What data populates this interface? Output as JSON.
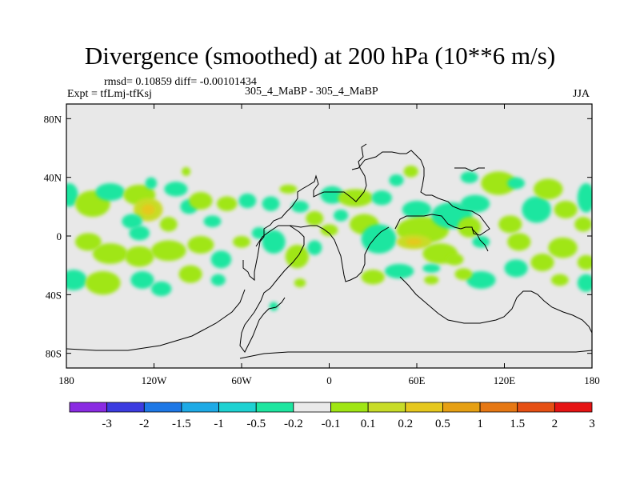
{
  "chart_data": {
    "type": "heatmap",
    "title": "Divergence (smoothed) at 200 hPa (10**6 m/s)",
    "stats": "rmsd= 0.10859 diff= -0.00101434",
    "left_label": "Expt = tfLmj-tfKsj",
    "center_label": "305_4_MaBP - 305_4_MaBP",
    "right_label": "JJA",
    "xlim": [
      -180,
      180
    ],
    "ylim": [
      -90,
      90
    ],
    "x_ticks": [
      {
        "value": -180,
        "label": "180"
      },
      {
        "value": -120,
        "label": "120W"
      },
      {
        "value": -60,
        "label": "60W"
      },
      {
        "value": 0,
        "label": "0"
      },
      {
        "value": 60,
        "label": "60E"
      },
      {
        "value": 120,
        "label": "120E"
      },
      {
        "value": 180,
        "label": "180"
      }
    ],
    "y_ticks": [
      {
        "value": 80,
        "label": "80N"
      },
      {
        "value": 40,
        "label": "40N"
      },
      {
        "value": 0,
        "label": "0"
      },
      {
        "value": -40,
        "label": "40S"
      },
      {
        "value": -80,
        "label": "80S"
      }
    ],
    "colorbar": {
      "colors": [
        "#8a2be2",
        "#3c3ce0",
        "#1e78e6",
        "#1eaae6",
        "#1ed2d2",
        "#1ee6a0",
        "#eaeaea",
        "#a0e614",
        "#c8dc28",
        "#e6c81e",
        "#e6a014",
        "#e67814",
        "#e65014",
        "#e61414"
      ],
      "labels": [
        "-3",
        "-2",
        "-1.5",
        "-1",
        "-0.5",
        "-0.2",
        "-0.1",
        "0.1",
        "0.2",
        "0.5",
        "1",
        "1.5",
        "2",
        "3"
      ]
    },
    "blobs": [
      {
        "lon": -178,
        "lat": 28,
        "rx": 6,
        "ry": 8,
        "v": -0.3
      },
      {
        "lon": -162,
        "lat": 22,
        "rx": 12,
        "ry": 9,
        "v": 0.3
      },
      {
        "lon": -150,
        "lat": 30,
        "rx": 10,
        "ry": 6,
        "v": -0.3
      },
      {
        "lon": -130,
        "lat": 28,
        "rx": 11,
        "ry": 7,
        "v": 0.3
      },
      {
        "lon": -124,
        "lat": 18,
        "rx": 10,
        "ry": 8,
        "v": 0.6
      },
      {
        "lon": -135,
        "lat": 10,
        "rx": 7,
        "ry": 5,
        "v": -0.3
      },
      {
        "lon": -122,
        "lat": 36,
        "rx": 4,
        "ry": 4,
        "v": -0.3
      },
      {
        "lon": -110,
        "lat": 8,
        "rx": 6,
        "ry": 5,
        "v": 0.3
      },
      {
        "lon": -96,
        "lat": 20,
        "rx": 6,
        "ry": 5,
        "v": -0.3
      },
      {
        "lon": -88,
        "lat": 24,
        "rx": 8,
        "ry": 6,
        "v": 0.3
      },
      {
        "lon": -70,
        "lat": 22,
        "rx": 7,
        "ry": 5,
        "v": 0.3
      },
      {
        "lon": -80,
        "lat": 10,
        "rx": 6,
        "ry": 4,
        "v": -0.3
      },
      {
        "lon": -105,
        "lat": 32,
        "rx": 8,
        "ry": 5,
        "v": -0.3
      },
      {
        "lon": -56,
        "lat": 24,
        "rx": 6,
        "ry": 5,
        "v": -0.3
      },
      {
        "lon": -98,
        "lat": 44,
        "rx": 3,
        "ry": 3,
        "v": 0.3
      },
      {
        "lon": -165,
        "lat": -4,
        "rx": 9,
        "ry": 6,
        "v": 0.3
      },
      {
        "lon": -150,
        "lat": -12,
        "rx": 12,
        "ry": 7,
        "v": 0.4
      },
      {
        "lon": -130,
        "lat": -14,
        "rx": 10,
        "ry": 7,
        "v": 0.3
      },
      {
        "lon": -130,
        "lat": 2,
        "rx": 7,
        "ry": 5,
        "v": -0.3
      },
      {
        "lon": -110,
        "lat": -10,
        "rx": 12,
        "ry": 7,
        "v": 0.3
      },
      {
        "lon": -88,
        "lat": -6,
        "rx": 9,
        "ry": 6,
        "v": 0.3
      },
      {
        "lon": -74,
        "lat": -16,
        "rx": 7,
        "ry": 6,
        "v": -0.3
      },
      {
        "lon": -60,
        "lat": -4,
        "rx": 6,
        "ry": 4,
        "v": 0.3
      },
      {
        "lon": -175,
        "lat": -30,
        "rx": 9,
        "ry": 7,
        "v": -0.3
      },
      {
        "lon": -155,
        "lat": -32,
        "rx": 12,
        "ry": 8,
        "v": 0.3
      },
      {
        "lon": -128,
        "lat": -30,
        "rx": 8,
        "ry": 6,
        "v": -0.3
      },
      {
        "lon": -115,
        "lat": -36,
        "rx": 7,
        "ry": 5,
        "v": -0.3
      },
      {
        "lon": -95,
        "lat": -26,
        "rx": 8,
        "ry": 6,
        "v": 0.3
      },
      {
        "lon": -76,
        "lat": -30,
        "rx": 5,
        "ry": 4,
        "v": -0.3
      },
      {
        "lon": -40,
        "lat": 22,
        "rx": 6,
        "ry": 5,
        "v": -0.3
      },
      {
        "lon": -20,
        "lat": 20,
        "rx": 6,
        "ry": 4,
        "v": -0.3
      },
      {
        "lon": -28,
        "lat": 32,
        "rx": 6,
        "ry": 3,
        "v": 0.3
      },
      {
        "lon": 2,
        "lat": 28,
        "rx": 8,
        "ry": 6,
        "v": -0.3
      },
      {
        "lon": -10,
        "lat": 12,
        "rx": 6,
        "ry": 5,
        "v": 0.3
      },
      {
        "lon": -38,
        "lat": -4,
        "rx": 8,
        "ry": 8,
        "v": -0.3
      },
      {
        "lon": -22,
        "lat": -14,
        "rx": 8,
        "ry": 8,
        "v": 0.4
      },
      {
        "lon": -48,
        "lat": 2,
        "rx": 5,
        "ry": 4,
        "v": -0.3
      },
      {
        "lon": -10,
        "lat": -8,
        "rx": 5,
        "ry": 5,
        "v": -0.3
      },
      {
        "lon": -20,
        "lat": -32,
        "rx": 4,
        "ry": 3,
        "v": 0.3
      },
      {
        "lon": -38,
        "lat": -48,
        "rx": 3,
        "ry": 3,
        "v": -0.3
      },
      {
        "lon": 0,
        "lat": 4,
        "rx": 6,
        "ry": 4,
        "v": 0.3
      },
      {
        "lon": 18,
        "lat": 26,
        "rx": 12,
        "ry": 6,
        "v": 0.3
      },
      {
        "lon": 24,
        "lat": 8,
        "rx": 10,
        "ry": 7,
        "v": 0.3
      },
      {
        "lon": 8,
        "lat": 14,
        "rx": 5,
        "ry": 4,
        "v": -0.3
      },
      {
        "lon": 34,
        "lat": -2,
        "rx": 12,
        "ry": 10,
        "v": -0.3
      },
      {
        "lon": 36,
        "lat": 26,
        "rx": 7,
        "ry": 5,
        "v": -0.3
      },
      {
        "lon": 56,
        "lat": 44,
        "rx": 5,
        "ry": 4,
        "v": 0.3
      },
      {
        "lon": 46,
        "lat": 38,
        "rx": 5,
        "ry": 4,
        "v": -0.3
      },
      {
        "lon": 60,
        "lat": 18,
        "rx": 10,
        "ry": 6,
        "v": -0.3
      },
      {
        "lon": 64,
        "lat": 4,
        "rx": 18,
        "ry": 9,
        "v": 0.4
      },
      {
        "lon": 58,
        "lat": -4,
        "rx": 12,
        "ry": 5,
        "v": 0.6
      },
      {
        "lon": 84,
        "lat": 14,
        "rx": 14,
        "ry": 9,
        "v": -0.3
      },
      {
        "lon": 76,
        "lat": -12,
        "rx": 12,
        "ry": 7,
        "v": 0.3
      },
      {
        "lon": 100,
        "lat": 22,
        "rx": 10,
        "ry": 6,
        "v": -0.3
      },
      {
        "lon": 96,
        "lat": 6,
        "rx": 8,
        "ry": 7,
        "v": 0.3
      },
      {
        "lon": 104,
        "lat": -4,
        "rx": 6,
        "ry": 4,
        "v": -0.3
      },
      {
        "lon": 86,
        "lat": -16,
        "rx": 6,
        "ry": 4,
        "v": 0.3
      },
      {
        "lon": 70,
        "lat": -22,
        "rx": 6,
        "ry": 3,
        "v": -0.3
      },
      {
        "lon": 116,
        "lat": 36,
        "rx": 12,
        "ry": 8,
        "v": 0.3
      },
      {
        "lon": 128,
        "lat": 36,
        "rx": 6,
        "ry": 4,
        "v": -0.3
      },
      {
        "lon": 96,
        "lat": 40,
        "rx": 6,
        "ry": 4,
        "v": -0.3
      },
      {
        "lon": 124,
        "lat": 8,
        "rx": 8,
        "ry": 6,
        "v": 0.3
      },
      {
        "lon": 130,
        "lat": -4,
        "rx": 8,
        "ry": 6,
        "v": 0.3
      },
      {
        "lon": 142,
        "lat": 18,
        "rx": 10,
        "ry": 9,
        "v": -0.3
      },
      {
        "lon": 150,
        "lat": 32,
        "rx": 10,
        "ry": 7,
        "v": 0.3
      },
      {
        "lon": 162,
        "lat": 18,
        "rx": 8,
        "ry": 6,
        "v": 0.3
      },
      {
        "lon": 176,
        "lat": 26,
        "rx": 6,
        "ry": 10,
        "v": -0.3
      },
      {
        "lon": 174,
        "lat": 8,
        "rx": 6,
        "ry": 5,
        "v": 0.3
      },
      {
        "lon": 160,
        "lat": -8,
        "rx": 10,
        "ry": 7,
        "v": 0.3
      },
      {
        "lon": 146,
        "lat": -18,
        "rx": 8,
        "ry": 6,
        "v": 0.3
      },
      {
        "lon": 176,
        "lat": -18,
        "rx": 6,
        "ry": 5,
        "v": 0.3
      },
      {
        "lon": 176,
        "lat": -32,
        "rx": 6,
        "ry": 6,
        "v": -0.3
      },
      {
        "lon": 128,
        "lat": -22,
        "rx": 8,
        "ry": 6,
        "v": -0.3
      },
      {
        "lon": 104,
        "lat": -30,
        "rx": 10,
        "ry": 6,
        "v": -0.3
      },
      {
        "lon": 92,
        "lat": -26,
        "rx": 6,
        "ry": 4,
        "v": 0.3
      },
      {
        "lon": 48,
        "lat": -24,
        "rx": 10,
        "ry": 5,
        "v": -0.3
      },
      {
        "lon": 30,
        "lat": -28,
        "rx": 8,
        "ry": 5,
        "v": 0.3
      },
      {
        "lon": 158,
        "lat": -30,
        "rx": 6,
        "ry": 4,
        "v": 0.3
      },
      {
        "lon": 70,
        "lat": -30,
        "rx": 5,
        "ry": 3,
        "v": 0.3
      }
    ]
  }
}
